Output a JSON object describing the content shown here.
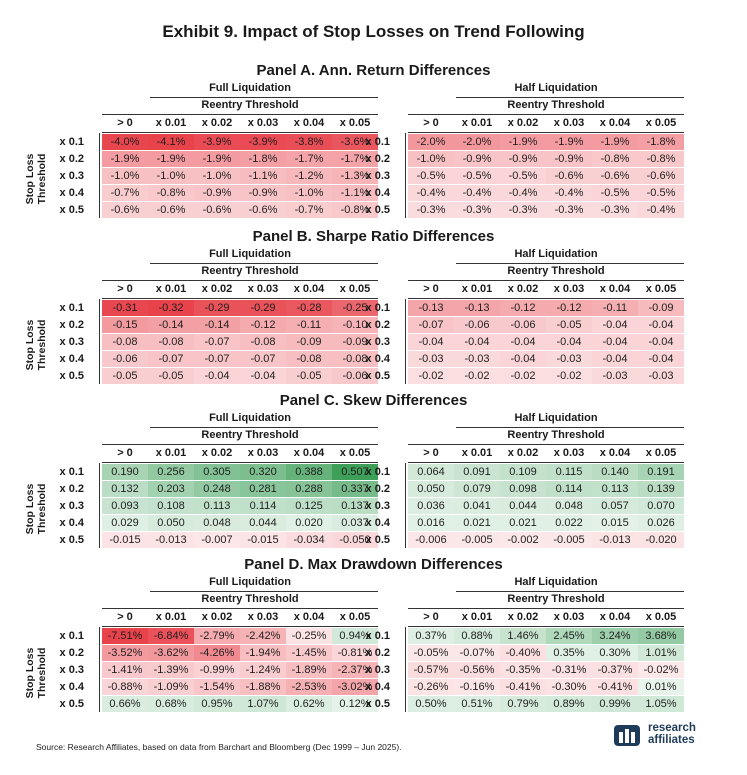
{
  "title": "Exhibit 9. Impact of Stop Losses on Trend Following",
  "group_labels": {
    "full": "Full Liquidation",
    "half": "Half Liquidation",
    "reentry": "Reentry Threshold"
  },
  "col_headers": [
    "> 0",
    "x 0.01",
    "x 0.02",
    "x 0.03",
    "x 0.04",
    "x 0.05"
  ],
  "row_headers": [
    "x 0.1",
    "x 0.2",
    "x 0.3",
    "x 0.4",
    "x 0.5"
  ],
  "y_axis_label": [
    "Stop Loss",
    "Threshold"
  ],
  "colors": {
    "negative": "#e8424b",
    "positive": "#3d9f58",
    "neutral": "#ffffff"
  },
  "source": "Source: Research Affiliates, based on data from Barchart and Bloomberg (Dec 1999 – Jun 2025).",
  "logo": {
    "line1": "research",
    "line2": "affiliates"
  },
  "chart_data": [
    {
      "type": "heatmap",
      "title": "Panel A. Ann. Return Differences",
      "format": "pct1",
      "full": [
        [
          -4.0,
          -4.1,
          -3.9,
          -3.9,
          -3.8,
          -3.6
        ],
        [
          -1.9,
          -1.9,
          -1.9,
          -1.8,
          -1.7,
          -1.7
        ],
        [
          -1.0,
          -1.0,
          -1.0,
          -1.1,
          -1.2,
          -1.3
        ],
        [
          -0.7,
          -0.8,
          -0.9,
          -0.9,
          -1.0,
          -1.1
        ],
        [
          -0.6,
          -0.6,
          -0.6,
          -0.6,
          -0.7,
          -0.8
        ]
      ],
      "half": [
        [
          -2.0,
          -2.0,
          -1.9,
          -1.9,
          -1.9,
          -1.8
        ],
        [
          -1.0,
          -0.9,
          -0.9,
          -0.9,
          -0.8,
          -0.8
        ],
        [
          -0.5,
          -0.5,
          -0.5,
          -0.6,
          -0.6,
          -0.6
        ],
        [
          -0.4,
          -0.4,
          -0.4,
          -0.4,
          -0.5,
          -0.5
        ],
        [
          -0.3,
          -0.3,
          -0.3,
          -0.3,
          -0.3,
          -0.4
        ]
      ]
    },
    {
      "type": "heatmap",
      "title": "Panel B. Sharpe Ratio Differences",
      "format": "dec2",
      "full": [
        [
          -0.31,
          -0.32,
          -0.29,
          -0.29,
          -0.28,
          -0.25
        ],
        [
          -0.15,
          -0.14,
          -0.14,
          -0.12,
          -0.11,
          -0.1
        ],
        [
          -0.08,
          -0.08,
          -0.07,
          -0.08,
          -0.09,
          -0.09
        ],
        [
          -0.06,
          -0.07,
          -0.07,
          -0.07,
          -0.08,
          -0.08
        ],
        [
          -0.05,
          -0.05,
          -0.04,
          -0.04,
          -0.05,
          -0.06
        ]
      ],
      "half": [
        [
          -0.13,
          -0.13,
          -0.12,
          -0.12,
          -0.11,
          -0.09
        ],
        [
          -0.07,
          -0.06,
          -0.06,
          -0.05,
          -0.04,
          -0.04
        ],
        [
          -0.04,
          -0.04,
          -0.04,
          -0.04,
          -0.04,
          -0.04
        ],
        [
          -0.03,
          -0.03,
          -0.04,
          -0.03,
          -0.04,
          -0.04
        ],
        [
          -0.02,
          -0.02,
          -0.02,
          -0.02,
          -0.03,
          -0.03
        ]
      ]
    },
    {
      "type": "heatmap",
      "title": "Panel C. Skew Differences",
      "format": "dec3",
      "full": [
        [
          0.19,
          0.256,
          0.305,
          0.32,
          0.388,
          0.507
        ],
        [
          0.132,
          0.203,
          0.248,
          0.281,
          0.288,
          0.337
        ],
        [
          0.093,
          0.108,
          0.113,
          0.114,
          0.125,
          0.137
        ],
        [
          0.029,
          0.05,
          0.048,
          0.044,
          0.02,
          0.037
        ],
        [
          -0.015,
          -0.013,
          -0.007,
          -0.015,
          -0.034,
          -0.05
        ]
      ],
      "half": [
        [
          0.064,
          0.091,
          0.109,
          0.115,
          0.14,
          0.191
        ],
        [
          0.05,
          0.079,
          0.098,
          0.114,
          0.113,
          0.139
        ],
        [
          0.036,
          0.041,
          0.044,
          0.048,
          0.057,
          0.07
        ],
        [
          0.016,
          0.021,
          0.021,
          0.022,
          0.015,
          0.026
        ],
        [
          -0.006,
          -0.005,
          -0.002,
          -0.005,
          -0.013,
          -0.02
        ]
      ]
    },
    {
      "type": "heatmap",
      "title": "Panel D. Max Drawdown Differences",
      "format": "pct2",
      "full": [
        [
          -7.51,
          -6.84,
          -2.79,
          -2.42,
          -0.25,
          0.94
        ],
        [
          -3.52,
          -3.62,
          -4.26,
          -1.94,
          -1.45,
          -0.81
        ],
        [
          -1.41,
          -1.39,
          -0.99,
          -1.24,
          -1.89,
          -2.37
        ],
        [
          -0.88,
          -1.09,
          -1.54,
          -1.88,
          -2.53,
          -3.02
        ],
        [
          0.66,
          0.68,
          0.95,
          1.07,
          0.62,
          0.12
        ]
      ],
      "half": [
        [
          0.37,
          0.88,
          1.46,
          2.45,
          3.24,
          3.68
        ],
        [
          -0.05,
          -0.07,
          -0.4,
          0.35,
          0.3,
          1.01
        ],
        [
          -0.57,
          -0.56,
          -0.35,
          -0.31,
          -0.37,
          -0.02
        ],
        [
          -0.26,
          -0.16,
          -0.41,
          -0.3,
          -0.41,
          0.01
        ],
        [
          0.5,
          0.51,
          0.79,
          0.89,
          0.99,
          1.05
        ]
      ]
    }
  ]
}
